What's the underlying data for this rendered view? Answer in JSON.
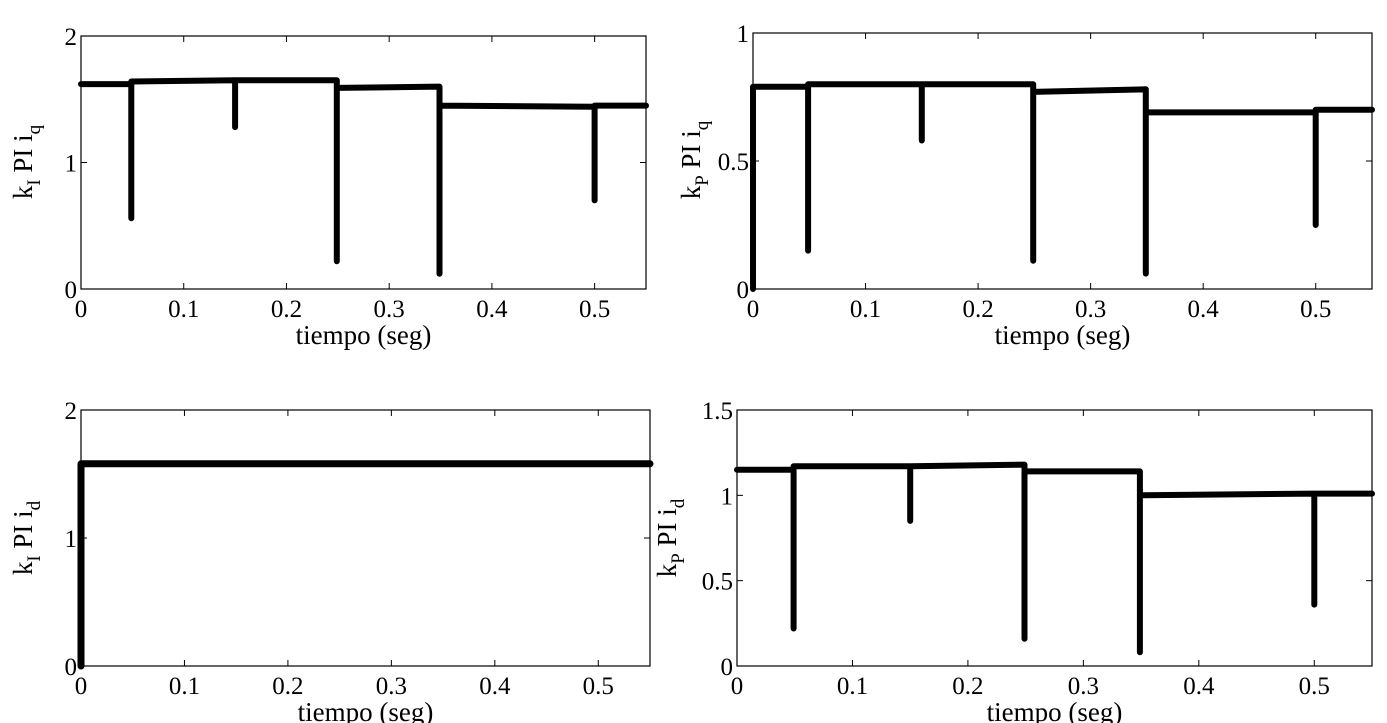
{
  "chart_data": [
    {
      "type": "line",
      "xlabel": "tiempo (seg)",
      "ylabel": {
        "main": "k",
        "sub": "I",
        "mid": " PI i",
        "sub2": "q"
      },
      "xlim": [
        0,
        0.55
      ],
      "ylim": [
        0,
        2
      ],
      "xticks": [
        {
          "v": 0,
          "label": "0"
        },
        {
          "v": 0.1,
          "label": "0.1"
        },
        {
          "v": 0.2,
          "label": "0.2"
        },
        {
          "v": 0.3,
          "label": "0.3"
        },
        {
          "v": 0.4,
          "label": "0.4"
        },
        {
          "v": 0.5,
          "label": "0.5"
        }
      ],
      "yticks": [
        {
          "v": 0,
          "label": "0"
        },
        {
          "v": 1,
          "label": "1"
        },
        {
          "v": 2,
          "label": "2"
        }
      ],
      "grid": false,
      "series": [
        {
          "x": [
            0,
            0.049,
            0.049,
            0.049,
            0.15,
            0.15,
            0.15,
            0.249,
            0.249,
            0.249,
            0.349,
            0.349,
            0.349,
            0.5,
            0.5,
            0.5,
            0.55
          ],
          "y": [
            1.62,
            1.62,
            0.56,
            1.64,
            1.65,
            1.28,
            1.65,
            1.65,
            0.22,
            1.59,
            1.6,
            0.12,
            1.45,
            1.44,
            0.7,
            1.45,
            1.45
          ]
        }
      ]
    },
    {
      "type": "line",
      "xlabel": "tiempo (seg)",
      "ylabel": {
        "main": "k",
        "sub": "P",
        "mid": " PI i",
        "sub2": "q"
      },
      "xlim": [
        0,
        0.55
      ],
      "ylim": [
        0,
        1
      ],
      "xticks": [
        {
          "v": 0,
          "label": "0"
        },
        {
          "v": 0.1,
          "label": "0.1"
        },
        {
          "v": 0.2,
          "label": "0.2"
        },
        {
          "v": 0.3,
          "label": "0.3"
        },
        {
          "v": 0.4,
          "label": "0.4"
        },
        {
          "v": 0.5,
          "label": "0.5"
        }
      ],
      "yticks": [
        {
          "v": 0,
          "label": "0"
        },
        {
          "v": 0.5,
          "label": "0.5"
        },
        {
          "v": 1,
          "label": "1"
        }
      ],
      "grid": false,
      "series": [
        {
          "x": [
            0,
            0,
            0.049,
            0.049,
            0.049,
            0.15,
            0.15,
            0.15,
            0.249,
            0.249,
            0.249,
            0.349,
            0.349,
            0.349,
            0.5,
            0.5,
            0.5,
            0.55
          ],
          "y": [
            0.0,
            0.79,
            0.79,
            0.15,
            0.8,
            0.8,
            0.58,
            0.8,
            0.8,
            0.11,
            0.77,
            0.78,
            0.06,
            0.69,
            0.69,
            0.25,
            0.7,
            0.7
          ]
        }
      ]
    },
    {
      "type": "line",
      "xlabel": "tiempo (seg)",
      "ylabel": {
        "main": "k",
        "sub": "I",
        "mid": " PI i",
        "sub2": "d"
      },
      "xlim": [
        0,
        0.55
      ],
      "ylim": [
        0,
        2
      ],
      "xticks": [
        {
          "v": 0,
          "label": "0"
        },
        {
          "v": 0.1,
          "label": "0.1"
        },
        {
          "v": 0.2,
          "label": "0.2"
        },
        {
          "v": 0.3,
          "label": "0.3"
        },
        {
          "v": 0.4,
          "label": "0.4"
        },
        {
          "v": 0.5,
          "label": "0.5"
        }
      ],
      "yticks": [
        {
          "v": 0,
          "label": "0"
        },
        {
          "v": 1,
          "label": "1"
        },
        {
          "v": 2,
          "label": "2"
        }
      ],
      "grid": false,
      "series": [
        {
          "x": [
            0,
            0,
            0.55
          ],
          "y": [
            0,
            1.58,
            1.58
          ]
        }
      ]
    },
    {
      "type": "line",
      "xlabel": "tiempo (seg)",
      "ylabel": {
        "main": "k",
        "sub": "P",
        "mid": " PI i",
        "sub2": "d"
      },
      "xlim": [
        0,
        0.55
      ],
      "ylim": [
        0,
        1.5
      ],
      "xticks": [
        {
          "v": 0,
          "label": "0"
        },
        {
          "v": 0.1,
          "label": "0.1"
        },
        {
          "v": 0.2,
          "label": "0.2"
        },
        {
          "v": 0.3,
          "label": "0.3"
        },
        {
          "v": 0.4,
          "label": "0.4"
        },
        {
          "v": 0.5,
          "label": "0.5"
        }
      ],
      "yticks": [
        {
          "v": 0,
          "label": "0"
        },
        {
          "v": 0.5,
          "label": "0.5"
        },
        {
          "v": 1,
          "label": "1"
        },
        {
          "v": 1.5,
          "label": "1.5"
        }
      ],
      "grid": false,
      "series": [
        {
          "x": [
            0,
            0.049,
            0.049,
            0.049,
            0.15,
            0.15,
            0.15,
            0.249,
            0.249,
            0.249,
            0.349,
            0.349,
            0.349,
            0.5,
            0.5,
            0.5,
            0.55
          ],
          "y": [
            1.15,
            1.15,
            0.22,
            1.17,
            1.17,
            0.85,
            1.17,
            1.18,
            0.16,
            1.14,
            1.14,
            0.08,
            1.0,
            1.01,
            0.36,
            1.01,
            1.01
          ]
        }
      ]
    }
  ]
}
